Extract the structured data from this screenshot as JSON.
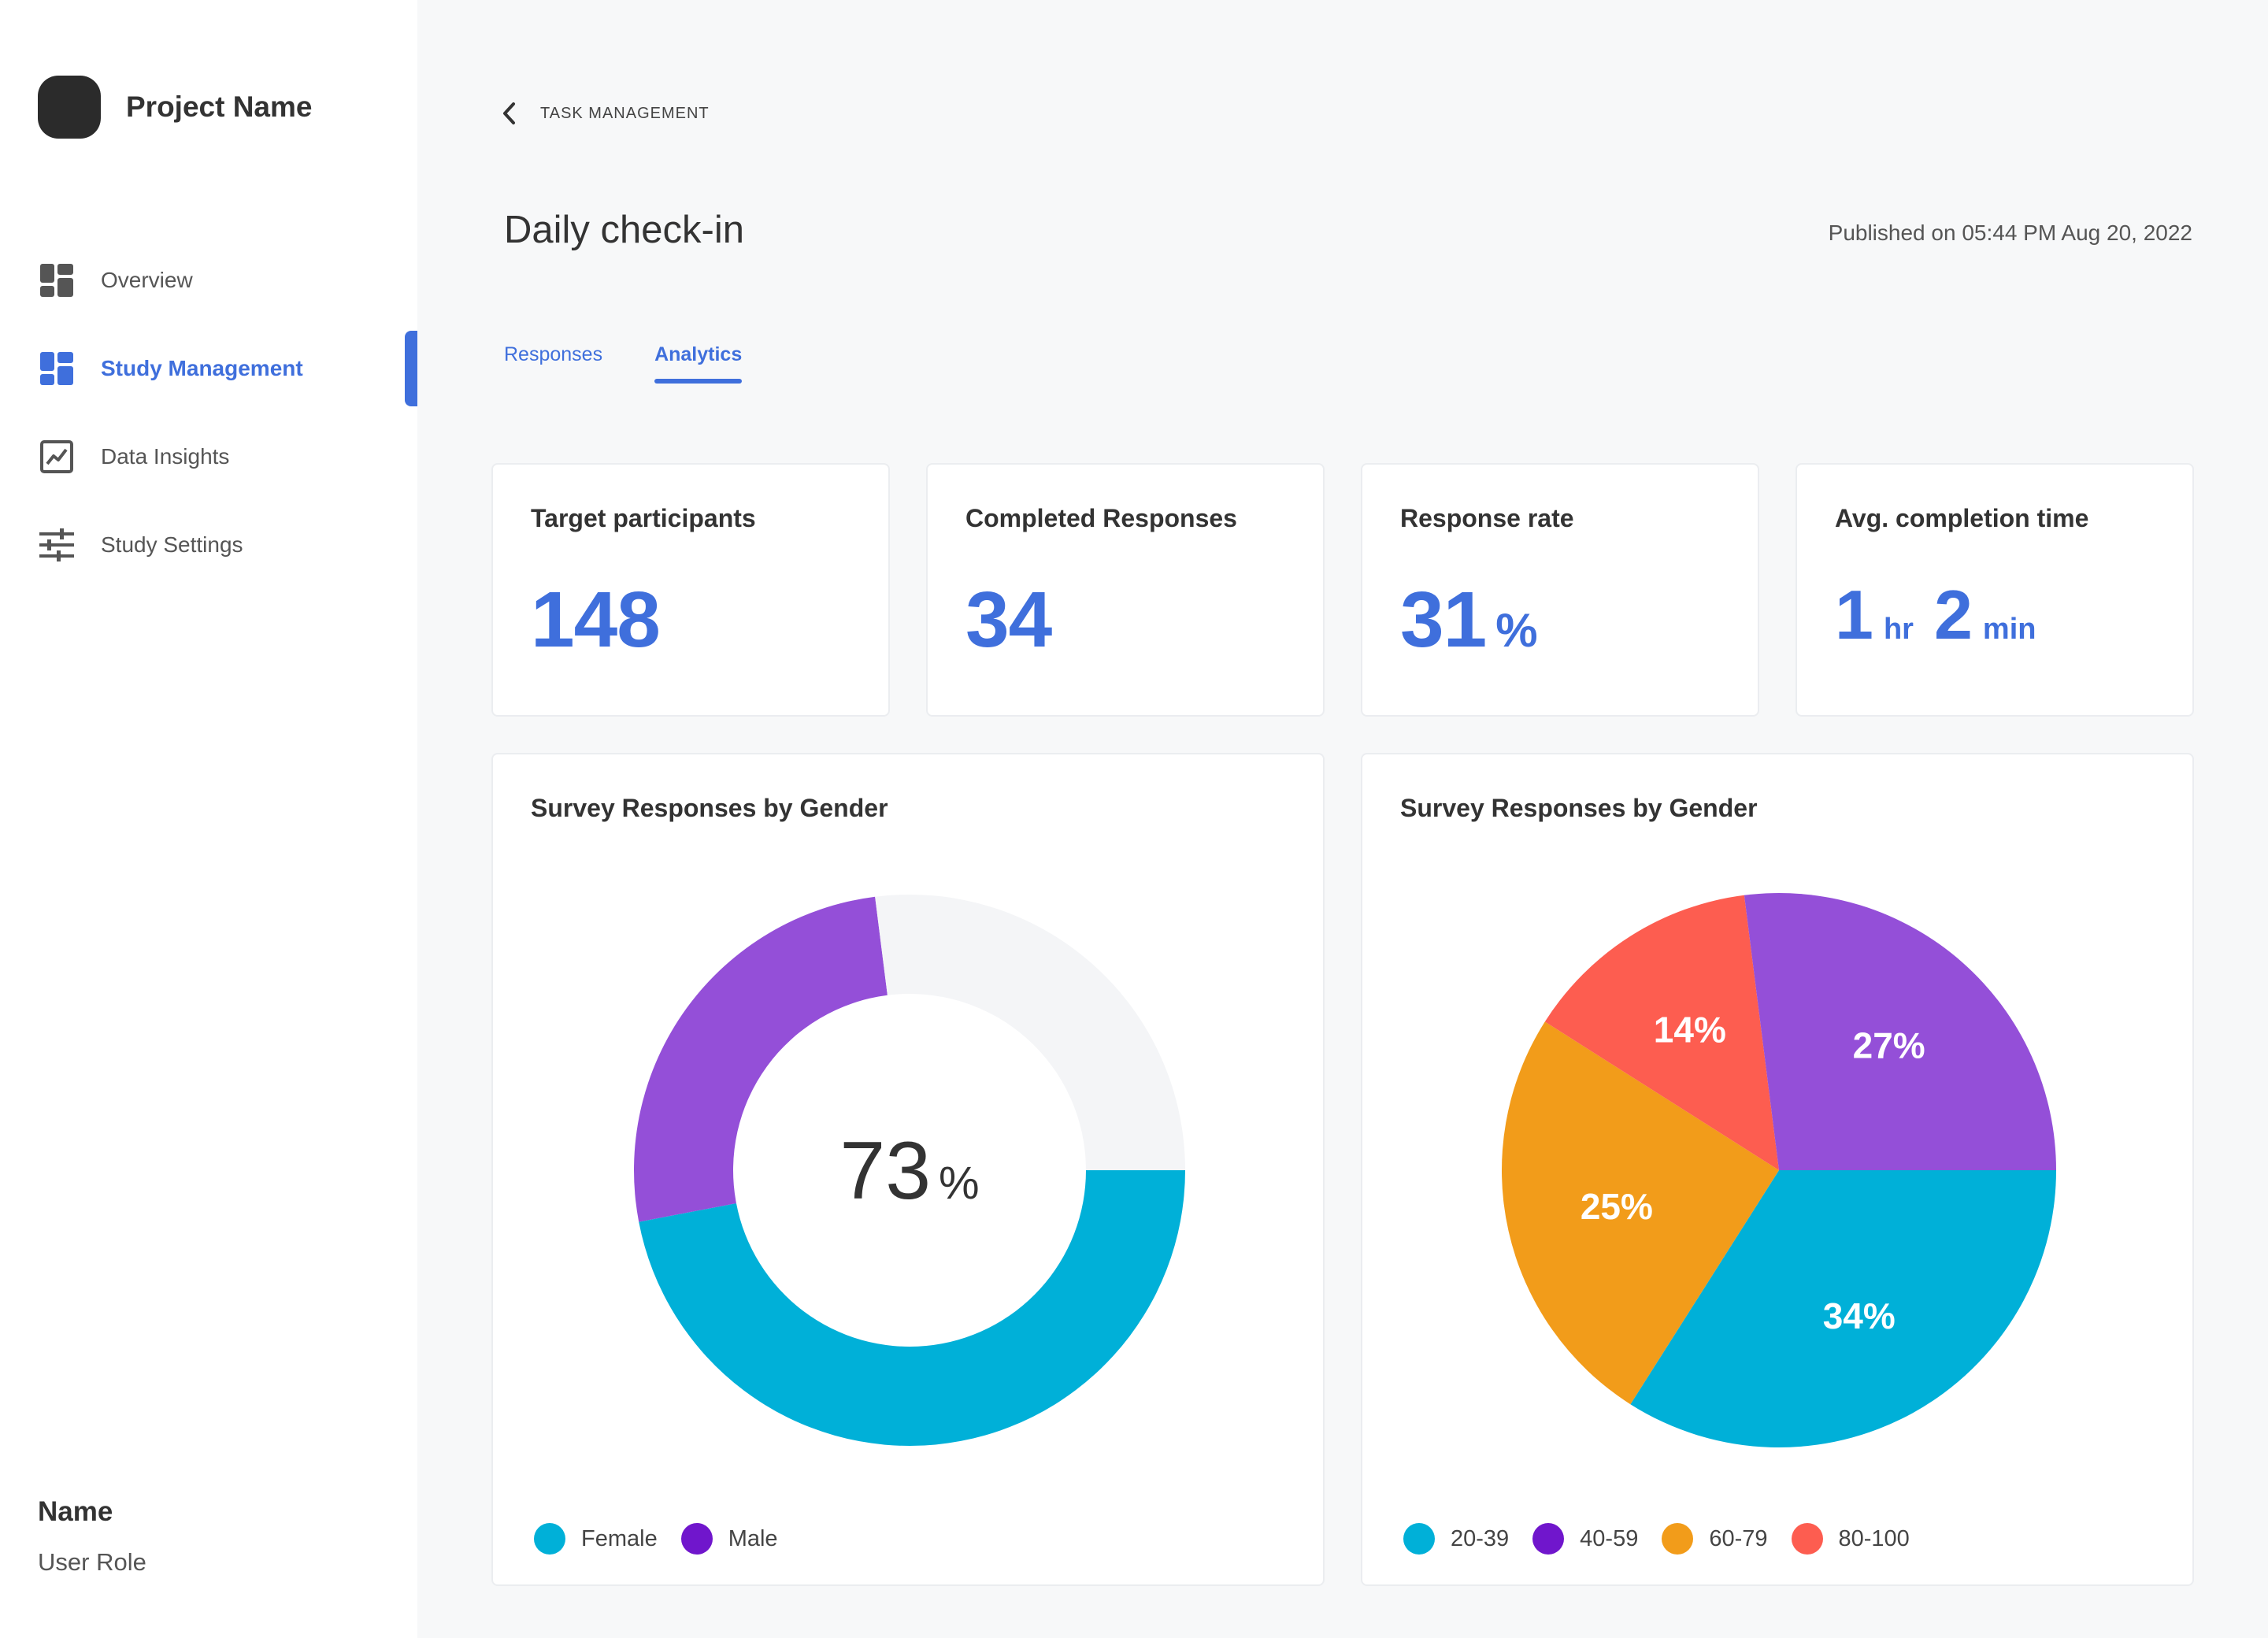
{
  "sidebar": {
    "project_name": "Project Name",
    "items": [
      {
        "label": "Overview",
        "icon": "dashboard-icon",
        "active": false
      },
      {
        "label": "Study Management",
        "icon": "dashboard-icon",
        "active": true
      },
      {
        "label": "Data Insights",
        "icon": "chart-icon",
        "active": false
      },
      {
        "label": "Study Settings",
        "icon": "sliders-icon",
        "active": false
      }
    ],
    "user": {
      "name": "Name",
      "role": "User Role"
    }
  },
  "header": {
    "breadcrumb": "TASK MANAGEMENT",
    "title": "Daily check-in",
    "published": "Published on 05:44 PM Aug 20, 2022"
  },
  "tabs": [
    {
      "label": "Responses",
      "active": false
    },
    {
      "label": "Analytics",
      "active": true
    }
  ],
  "stats": {
    "target": {
      "title": "Target participants",
      "value": "148"
    },
    "completed": {
      "title": "Completed Responses",
      "value": "34"
    },
    "rate": {
      "title": "Response rate",
      "value": "31",
      "unit": "%"
    },
    "avg_time": {
      "title": "Avg. completion time",
      "hours": "1",
      "hours_unit": "hr",
      "minutes": "2",
      "minutes_unit": "min"
    }
  },
  "colors": {
    "accent": "#3f6fdc",
    "cyan": "#00b0d8",
    "purple": "#944fd8",
    "purple_dark": "#7016cc",
    "orange": "#f29c1a",
    "red": "#fd5d50",
    "track": "#f4f5f7"
  },
  "chart_data": [
    {
      "type": "pie",
      "title": "Survey Responses by Gender",
      "center_label": {
        "value": "73",
        "unit": "%"
      },
      "slices": [
        {
          "label": "Female",
          "value": 47,
          "color": "#00b0d8"
        },
        {
          "label": "Male",
          "value": 26,
          "color": "#944fd8"
        },
        {
          "label": "",
          "value": 27,
          "color": "#f4f5f7"
        }
      ],
      "legend": [
        {
          "label": "Female",
          "color": "#00b0d8"
        },
        {
          "label": "Male",
          "color": "#7016cc"
        }
      ],
      "legend_position": "bottom-left"
    },
    {
      "type": "pie",
      "title": "Survey Responses by Gender",
      "slices": [
        {
          "label": "20-39",
          "value": 34,
          "display": "34%",
          "color": "#00b0d8"
        },
        {
          "label": "60-79",
          "value": 25,
          "display": "25%",
          "color": "#f29c1a"
        },
        {
          "label": "80-100",
          "value": 14,
          "display": "14%",
          "color": "#fd5d50"
        },
        {
          "label": "40-59",
          "value": 27,
          "display": "27%",
          "color": "#944fd8"
        }
      ],
      "legend": [
        {
          "label": "20-39",
          "color": "#00b0d8"
        },
        {
          "label": "40-59",
          "color": "#7016cc"
        },
        {
          "label": "60-79",
          "color": "#f29c1a"
        },
        {
          "label": "80-100",
          "color": "#fd5d50"
        }
      ],
      "legend_position": "bottom-left"
    }
  ]
}
